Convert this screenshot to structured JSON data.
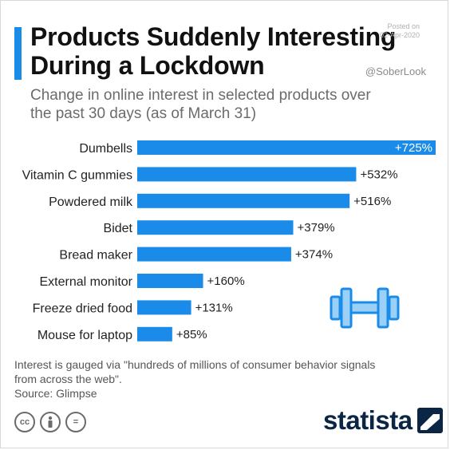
{
  "header": {
    "title": "Products Suddenly Interesting\nDuring a Lockdown",
    "subtitle": "Change in online interest in selected products over\nthe past 30 days (as of March 31)",
    "posted": "Posted on\n02-Apr-2020",
    "handle": "@SoberLook"
  },
  "colors": {
    "accent": "#1a8be8",
    "bar": "#1a8be8",
    "brand": "#0b2545"
  },
  "chart_data": {
    "type": "bar",
    "orientation": "horizontal",
    "title": "Products Suddenly Interesting During a Lockdown",
    "subtitle": "Change in online interest in selected products over the past 30 days (as of March 31)",
    "unit": "%",
    "xlim": [
      0,
      725
    ],
    "grid": false,
    "categories": [
      "Dumbells",
      "Vitamin C gummies",
      "Powdered milk",
      "Bidet",
      "Bread maker",
      "External monitor",
      "Freeze dried food",
      "Mouse for laptop"
    ],
    "values": [
      725,
      532,
      516,
      379,
      374,
      160,
      131,
      85
    ],
    "value_labels": [
      "+725%",
      "+532%",
      "+516%",
      "+379%",
      "+374%",
      "+160%",
      "+131%",
      "+85%"
    ]
  },
  "illustration": {
    "icon": "dumbbell-icon"
  },
  "footer": {
    "note": "Interest is gauged via \"hundreds of millions of consumer behavior signals\nfrom across the web\".",
    "source": "Source: Glimpse",
    "license_icons": [
      "cc-icon",
      "attribution-icon",
      "no-derivatives-icon"
    ],
    "license_cc": "cc",
    "license_nd": "=",
    "brand": "statista"
  }
}
